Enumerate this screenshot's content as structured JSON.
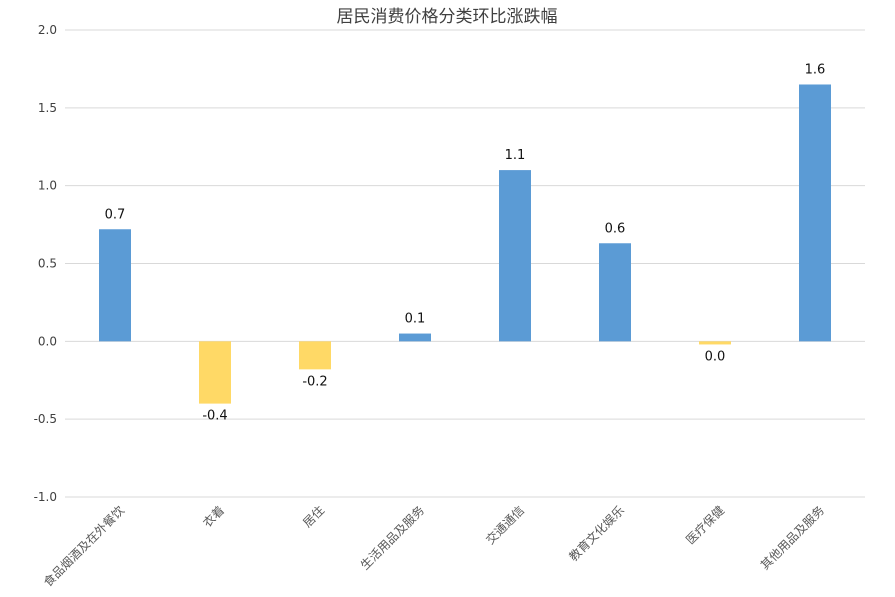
{
  "chart_data": {
    "type": "bar",
    "title": "居民消费价格分类环比涨跌幅",
    "xlabel": "",
    "ylabel": "",
    "ylim": [
      -1.0,
      2.0
    ],
    "yticks": [
      "2.0",
      "1.5",
      "1.0",
      "0.5",
      "0.0",
      "-0.5",
      "-1.0"
    ],
    "ytick_values": [
      2.0,
      1.5,
      1.0,
      0.5,
      0.0,
      -0.5,
      -1.0
    ],
    "categories": [
      "食品烟酒及在外餐饮",
      "衣着",
      "居住",
      "生活用品及服务",
      "交通通信",
      "教育文化娱乐",
      "医疗保健",
      "其他用品及服务"
    ],
    "values": [
      0.72,
      -0.4,
      -0.18,
      0.05,
      1.1,
      0.63,
      -0.02,
      1.65
    ],
    "data_labels": [
      "0.7",
      "-0.4",
      "-0.2",
      "0.1",
      "1.1",
      "0.6",
      "0.0",
      "1.6"
    ],
    "grid": true,
    "legend": "none",
    "colors": {
      "positive": "#5b9bd5",
      "negative": "#ffd966"
    }
  }
}
